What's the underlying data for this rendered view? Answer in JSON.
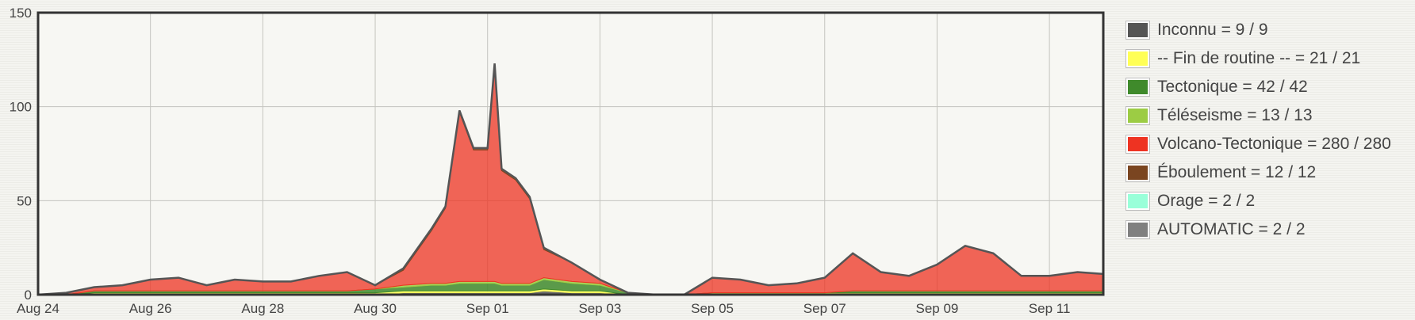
{
  "chart_data": {
    "type": "area",
    "stacked": true,
    "title": "",
    "xlabel": "",
    "ylabel": "",
    "ylim": [
      0,
      150
    ],
    "yticks": [
      0,
      50,
      100,
      150
    ],
    "xlim": [
      "2024-08-24",
      "2024-09-11T23:00"
    ],
    "xticks": [
      "2024-08-24",
      "2024-08-26",
      "2024-08-28",
      "2024-08-30",
      "2024-09-01",
      "2024-09-03",
      "2024-09-05",
      "2024-09-07",
      "2024-09-09",
      "2024-09-11"
    ],
    "xtick_labels": [
      "Aug 24",
      "Aug 26",
      "Aug 28",
      "Aug 30",
      "Sep 01",
      "Sep 03",
      "Sep 05",
      "Sep 07",
      "Sep 09",
      "Sep 11"
    ],
    "grid": true,
    "legend_position": "right",
    "x": [
      "2024-08-24",
      "2024-08-24T12:00",
      "2024-08-25",
      "2024-08-25T12:00",
      "2024-08-26",
      "2024-08-26T12:00",
      "2024-08-27",
      "2024-08-27T12:00",
      "2024-08-28",
      "2024-08-28T12:00",
      "2024-08-29",
      "2024-08-29T12:00",
      "2024-08-30",
      "2024-08-30T12:00",
      "2024-08-31",
      "2024-08-31T06:00",
      "2024-08-31T12:00",
      "2024-08-31T18:00",
      "2024-09-01",
      "2024-09-01T03:00",
      "2024-09-01T06:00",
      "2024-09-01T12:00",
      "2024-09-01T18:00",
      "2024-09-02",
      "2024-09-02T12:00",
      "2024-09-03",
      "2024-09-03T12:00",
      "2024-09-04",
      "2024-09-04T12:00",
      "2024-09-05",
      "2024-09-05T12:00",
      "2024-09-06",
      "2024-09-06T12:00",
      "2024-09-07",
      "2024-09-07T12:00",
      "2024-09-08",
      "2024-09-08T12:00",
      "2024-09-09",
      "2024-09-09T12:00",
      "2024-09-10",
      "2024-09-10T12:00",
      "2024-09-11",
      "2024-09-11T12:00",
      "2024-09-11T23:00"
    ],
    "series": [
      {
        "name": "Inconnu = 9 / 9",
        "color": "#555555",
        "values": [
          0,
          0,
          0,
          0,
          0,
          0,
          0,
          0,
          0,
          0,
          0,
          0,
          0,
          1,
          1,
          1,
          1,
          1,
          1,
          1,
          1,
          1,
          1,
          2,
          1,
          1,
          0,
          0,
          0,
          0,
          0,
          0,
          0,
          0,
          0,
          0,
          0,
          0,
          0,
          0,
          0,
          0,
          0,
          0
        ]
      },
      {
        "name": "-- Fin de routine -- = 21 / 21",
        "color": "#ffff55",
        "values": [
          0,
          0,
          1,
          1,
          1,
          1,
          1,
          1,
          1,
          1,
          1,
          1,
          1,
          1,
          1,
          1,
          1,
          1,
          1,
          1,
          1,
          1,
          1,
          1,
          1,
          1,
          0,
          0,
          0,
          1,
          1,
          1,
          1,
          1,
          1,
          1,
          1,
          1,
          1,
          1,
          1,
          1,
          1,
          1
        ]
      },
      {
        "name": "Tectonique = 42 / 42",
        "color": "#3f8a2b",
        "values": [
          0,
          0,
          1,
          1,
          1,
          1,
          1,
          1,
          1,
          1,
          1,
          1,
          2,
          2,
          3,
          3,
          4,
          4,
          4,
          4,
          3,
          3,
          3,
          5,
          4,
          3,
          1,
          0,
          0,
          0,
          0,
          0,
          0,
          0,
          1,
          1,
          1,
          1,
          1,
          1,
          1,
          1,
          1,
          1
        ]
      },
      {
        "name": "Téléseisme = 13 / 13",
        "color": "#9ccc44",
        "values": [
          0,
          0,
          0,
          0,
          0,
          0,
          0,
          0,
          0,
          0,
          0,
          0,
          0,
          1,
          1,
          1,
          1,
          1,
          1,
          1,
          1,
          1,
          1,
          1,
          1,
          1,
          0,
          0,
          0,
          0,
          0,
          0,
          0,
          0,
          0,
          0,
          0,
          0,
          0,
          0,
          0,
          0,
          0,
          0
        ]
      },
      {
        "name": "Volcano-Tectonique = 280 / 280",
        "color": "#ee3322",
        "values": [
          0,
          1,
          2,
          3,
          6,
          7,
          3,
          6,
          5,
          5,
          8,
          10,
          2,
          8,
          28,
          40,
          90,
          70,
          70,
          115,
          60,
          55,
          45,
          15,
          10,
          2,
          0,
          0,
          0,
          8,
          7,
          4,
          5,
          8,
          20,
          10,
          8,
          14,
          24,
          20,
          8,
          8,
          10,
          9
        ]
      },
      {
        "name": "Éboulement = 12 / 12",
        "color": "#7a4520",
        "values": [
          0,
          0,
          0,
          0,
          0,
          0,
          0,
          0,
          0,
          0,
          0,
          0,
          0,
          1,
          1,
          1,
          1,
          1,
          1,
          1,
          1,
          1,
          1,
          1,
          0,
          0,
          0,
          0,
          0,
          0,
          0,
          0,
          0,
          0,
          0,
          0,
          0,
          0,
          0,
          0,
          0,
          0,
          0,
          0
        ]
      },
      {
        "name": "Orage = 2 / 2",
        "color": "#99ffd9",
        "values": [
          0,
          0,
          0,
          0,
          0,
          0,
          0,
          0,
          0,
          0,
          0,
          0,
          0,
          0,
          0,
          0,
          0,
          0,
          0,
          0,
          0,
          0,
          0,
          0,
          0,
          0,
          0,
          0,
          0,
          0,
          0,
          0,
          0,
          0,
          0,
          0,
          0,
          0,
          0,
          0,
          0,
          0,
          0,
          0
        ]
      },
      {
        "name": "AUTOMATIC = 2 / 2",
        "color": "#808080",
        "values": [
          0,
          0,
          0,
          0,
          0,
          0,
          0,
          0,
          0,
          0,
          0,
          0,
          0,
          0,
          0,
          0,
          0,
          0,
          0,
          0,
          0,
          0,
          0,
          0,
          0,
          0,
          0,
          0,
          0,
          0,
          0,
          0,
          0,
          0,
          0,
          0,
          0,
          0,
          0,
          0,
          0,
          0,
          0,
          0
        ]
      }
    ]
  }
}
